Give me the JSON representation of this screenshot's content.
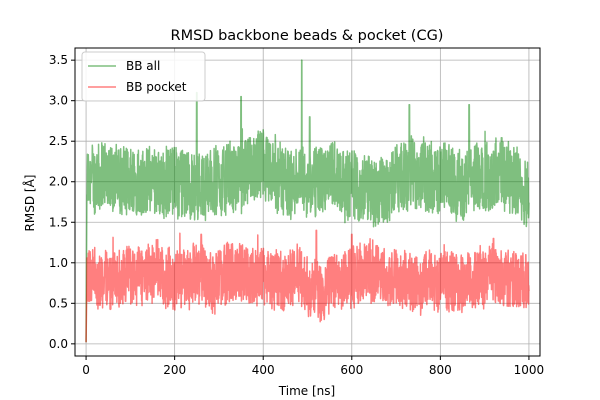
{
  "chart_data": {
    "type": "line",
    "title": "RMSD backbone beads & pocket (CG)",
    "xlabel": "Time [ns]",
    "ylabel": "RMSD [Å]",
    "xlim": [
      -25,
      1025
    ],
    "ylim": [
      -0.15,
      3.65
    ],
    "xticks": [
      0,
      200,
      400,
      600,
      800,
      1000
    ],
    "xtick_labels": [
      "0",
      "200",
      "400",
      "600",
      "800",
      "1000"
    ],
    "yticks": [
      0.0,
      0.5,
      1.0,
      1.5,
      2.0,
      2.5,
      3.0,
      3.5
    ],
    "ytick_labels": [
      "0.0",
      "0.5",
      "1.0",
      "1.5",
      "2.0",
      "2.5",
      "3.0",
      "3.5"
    ],
    "grid": true,
    "legend": "top-left",
    "series": [
      {
        "name": "BB all",
        "color": "#008000",
        "opacity": 0.5,
        "mean": 2.0,
        "typical_range": [
          1.55,
          2.5
        ],
        "peaks": [
          [
            250,
            3.1
          ],
          [
            350,
            3.05
          ],
          [
            487,
            3.5
          ],
          [
            730,
            2.95
          ],
          [
            865,
            2.95
          ],
          [
            505,
            2.8
          ]
        ]
      },
      {
        "name": "BB pocket",
        "color": "#ff0000",
        "opacity": 0.5,
        "mean": 0.8,
        "typical_range": [
          0.4,
          1.2
        ],
        "peaks": [
          [
            260,
            1.35
          ],
          [
            520,
            1.4
          ],
          [
            600,
            1.35
          ],
          [
            920,
            1.3
          ]
        ]
      }
    ]
  }
}
